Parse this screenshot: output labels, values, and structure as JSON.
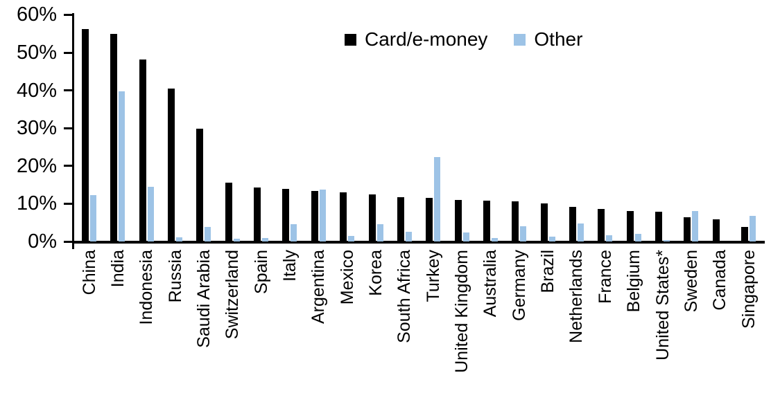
{
  "chart_data": {
    "type": "bar",
    "title": "",
    "xlabel": "",
    "ylabel": "",
    "ylim": [
      0,
      60
    ],
    "yticks": [
      0,
      10,
      20,
      30,
      40,
      50,
      60
    ],
    "ytick_suffix": "%",
    "grid": false,
    "legend_position": "top-center",
    "axis_color": "#000000",
    "categories": [
      "China",
      "India",
      "Indonesia",
      "Russia",
      "Saudi Arabia",
      "Switzerland",
      "Spain",
      "Italy",
      "Argentina",
      "Mexico",
      "Korea",
      "South Africa",
      "Turkey",
      "United Kingdom",
      "Australia",
      "Germany",
      "Brazil",
      "Netherlands",
      "France",
      "Belgium",
      "United States*",
      "Sweden",
      "Canada",
      "Singapore"
    ],
    "series": [
      {
        "name": "Card/e-money",
        "color": "#000000",
        "values": [
          56.2,
          54.9,
          48.2,
          40.5,
          29.8,
          15.6,
          14.2,
          14.0,
          13.3,
          13.0,
          12.4,
          11.8,
          11.6,
          11.0,
          10.8,
          10.6,
          10.0,
          9.2,
          8.6,
          8.0,
          7.8,
          6.5,
          5.8,
          3.9
        ]
      },
      {
        "name": "Other",
        "color": "#9DC3E6",
        "values": [
          12.2,
          39.7,
          14.5,
          1.1,
          3.9,
          0.8,
          1.0,
          4.6,
          13.8,
          1.4,
          4.6,
          2.5,
          22.3,
          2.3,
          1.0,
          4.0,
          1.2,
          4.8,
          1.6,
          2.1,
          0.3,
          8.0,
          0.0,
          6.7
        ]
      }
    ]
  },
  "legend": {
    "card_label": "Card/e-money",
    "other_label": "Other"
  }
}
